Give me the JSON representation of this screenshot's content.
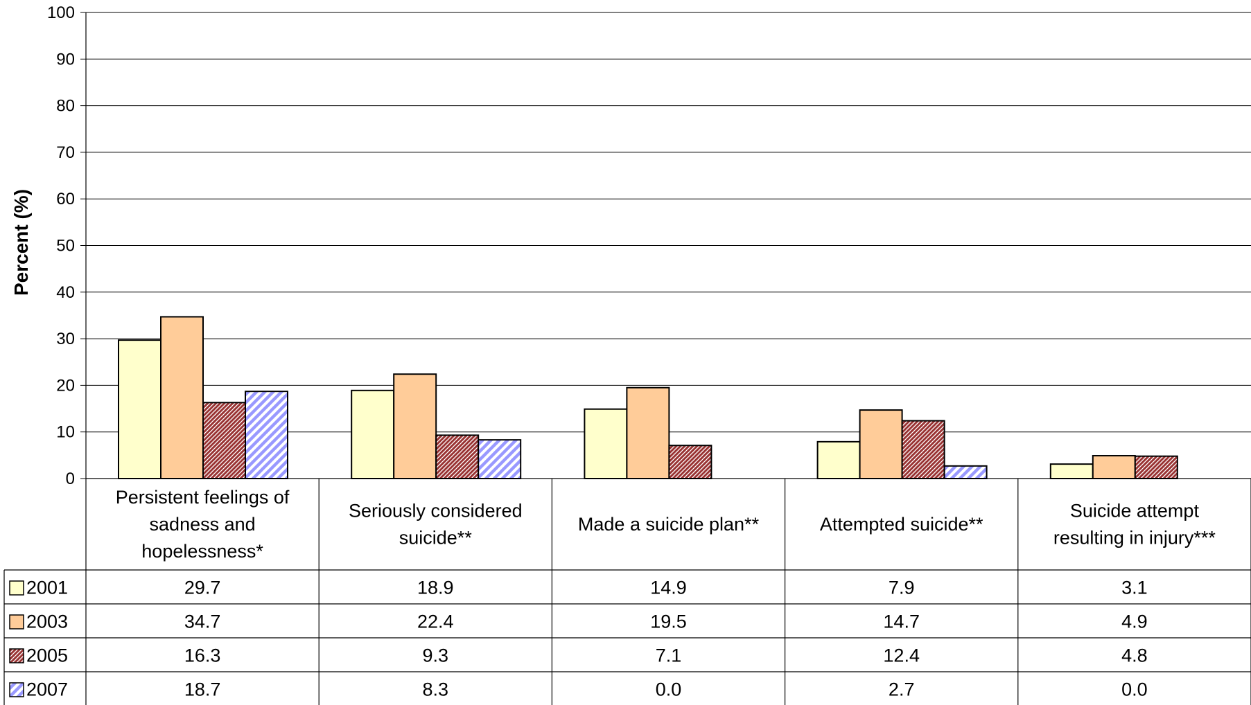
{
  "chart_data": {
    "type": "bar",
    "title": "",
    "xlabel": "",
    "ylabel": "Percent (%)",
    "ylim": [
      0,
      100
    ],
    "yticks": [
      "0",
      "10",
      "20",
      "30",
      "40",
      "50",
      "60",
      "70",
      "80",
      "90",
      "100"
    ],
    "grid": true,
    "legend": "data-table-left",
    "categories": [
      "Persistent feelings of sadness and hopelessness*",
      "Seriously considered suicide**",
      "Made a suicide plan**",
      "Attempted suicide**",
      "Suicide attempt resulting in injury***"
    ],
    "category_lines": [
      [
        "Persistent feelings of",
        "sadness and",
        "hopelessness*"
      ],
      [
        "Seriously considered",
        "suicide**"
      ],
      [
        "Made a suicide plan**"
      ],
      [
        "Attempted suicide**"
      ],
      [
        "Suicide attempt",
        "resulting in injury***"
      ]
    ],
    "series": [
      {
        "name": "2001",
        "values": [
          29.7,
          18.9,
          14.9,
          7.9,
          3.1
        ],
        "labels": [
          "29.7",
          "18.9",
          "14.9",
          "7.9",
          "3.1"
        ],
        "color": "#FFFFCC",
        "pattern": "solid"
      },
      {
        "name": "2003",
        "values": [
          34.7,
          22.4,
          19.5,
          14.7,
          4.9
        ],
        "labels": [
          "34.7",
          "22.4",
          "19.5",
          "14.7",
          "4.9"
        ],
        "color": "#FFCC99",
        "pattern": "solid"
      },
      {
        "name": "2005",
        "values": [
          16.3,
          9.3,
          7.1,
          12.4,
          4.8
        ],
        "labels": [
          "16.3",
          "9.3",
          "7.1",
          "12.4",
          "4.8"
        ],
        "color": "#993333",
        "pattern": "diagonal-hatch-dense"
      },
      {
        "name": "2007",
        "values": [
          18.7,
          8.3,
          0.0,
          2.7,
          0.0
        ],
        "labels": [
          "18.7",
          "8.3",
          "0.0",
          "2.7",
          "0.0"
        ],
        "color": "#9999FF",
        "pattern": "diagonal-stripe-wide"
      }
    ]
  }
}
